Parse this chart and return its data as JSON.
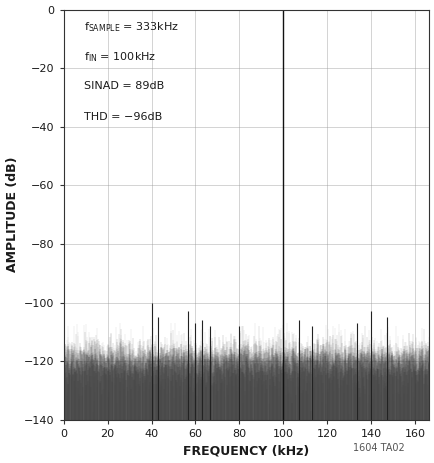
{
  "xlabel": "FREQUENCY (kHz)",
  "ylabel": "AMPLITUDE (dB)",
  "xlim": [
    0,
    166.5
  ],
  "ylim": [
    -140,
    0
  ],
  "xticks": [
    0,
    20,
    40,
    60,
    80,
    100,
    120,
    140,
    160
  ],
  "yticks": [
    0,
    -20,
    -40,
    -60,
    -80,
    -100,
    -120,
    -140
  ],
  "noise_floor_mean": -121,
  "noise_floor_std": 5.5,
  "fundamental_freq": 100.0,
  "fundamental_amp": -0.3,
  "spur_list": [
    [
      40.0,
      -100
    ],
    [
      43.0,
      -105
    ],
    [
      56.5,
      -103
    ],
    [
      60.0,
      -107
    ],
    [
      63.0,
      -106
    ],
    [
      66.5,
      -108
    ],
    [
      80.0,
      -108
    ],
    [
      107.0,
      -106
    ],
    [
      113.0,
      -108
    ],
    [
      133.5,
      -107
    ],
    [
      140.0,
      -103
    ],
    [
      147.0,
      -105
    ]
  ],
  "background_color": "#ffffff",
  "plot_bg_color": "#ffffff",
  "text_color": "#1a1a1a",
  "grid_color": "#999999",
  "watermark": "1604 TA02",
  "figsize": [
    4.35,
    4.63
  ],
  "dpi": 100
}
